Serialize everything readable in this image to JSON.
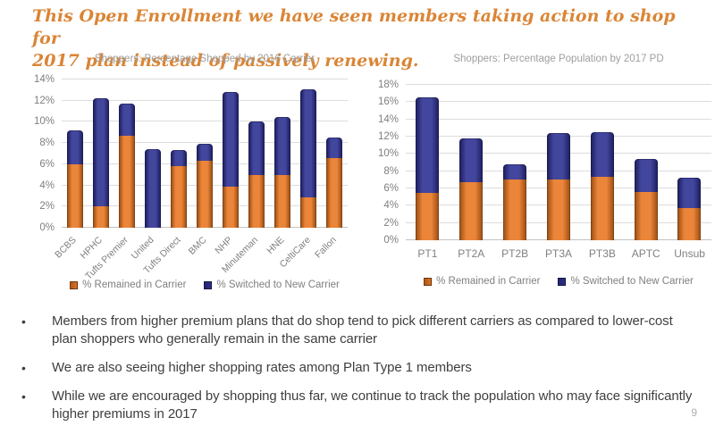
{
  "slide": {
    "title_line1": "This Open Enrollment we have seen members taking action to shop for",
    "title_line2": "2017 plan instead of passively renewing.",
    "page_number": "9"
  },
  "colors": {
    "title_orange": "#DA8536",
    "remained_bar": "#E87722",
    "switched_bar": "#2E3192",
    "gridline": "#DCDCDC",
    "axis_text": "#7F7F7F",
    "chart_title_text": "#9E9E9E",
    "bullet_text": "#3F3F3F"
  },
  "bullets": [
    "Members from higher premium plans that do shop tend to pick different carriers as compared to lower-cost plan shoppers who generally remain in the same carrier",
    "We are also seeing higher shopping rates among Plan Type 1 members",
    "While we are encouraged by shopping thus far, we continue to track the population who may face significantly higher premiums in 2017"
  ],
  "chart_data": [
    {
      "type": "bar",
      "stacked": true,
      "title": "Shoppers: Percentage Shopped by 2016 Carrier",
      "categories": [
        "BCBS",
        "HPHC",
        "Tufts Premier",
        "United",
        "Tufts Direct",
        "BMC",
        "NHP",
        "Minuteman",
        "HNE",
        "CeltiCare",
        "Fallon"
      ],
      "series": [
        {
          "name": "% Remained in Carrier",
          "color": "#E87722",
          "values": [
            6.0,
            2.0,
            8.7,
            0,
            5.8,
            6.3,
            3.9,
            5.0,
            5.0,
            2.9,
            6.6
          ]
        },
        {
          "name": "% Switched to New Carrier",
          "color": "#2E3192",
          "values": [
            3.2,
            10.2,
            3.0,
            7.4,
            1.5,
            1.6,
            8.9,
            5.0,
            5.5,
            10.2,
            1.9
          ]
        }
      ],
      "totals": [
        9.2,
        12.2,
        11.7,
        7.4,
        7.3,
        7.9,
        12.8,
        10.0,
        10.5,
        13.1,
        8.5
      ],
      "ylim": [
        0,
        14
      ],
      "ytick_step": 2,
      "ytick_labels": [
        "0%",
        "2%",
        "4%",
        "6%",
        "8%",
        "10%",
        "12%",
        "14%"
      ],
      "grid": true,
      "legend_position": "bottom",
      "xlabel_rotation": -45
    },
    {
      "type": "bar",
      "stacked": true,
      "title": "Shoppers: Percentage Population by 2017 PD",
      "categories": [
        "PT1",
        "PT2A",
        "PT2B",
        "PT3A",
        "PT3B",
        "APTC",
        "Unsub"
      ],
      "series": [
        {
          "name": "% Remained in Carrier",
          "color": "#E87722",
          "values": [
            5.5,
            6.7,
            7.0,
            7.0,
            7.3,
            5.6,
            3.7
          ]
        },
        {
          "name": "% Switched to New Carrier",
          "color": "#2E3192",
          "values": [
            11.1,
            5.1,
            1.8,
            5.4,
            5.2,
            3.8,
            3.5
          ]
        }
      ],
      "totals": [
        16.6,
        11.8,
        8.8,
        12.4,
        12.5,
        9.4,
        7.2
      ],
      "ylim": [
        0,
        18
      ],
      "ytick_step": 2,
      "ytick_labels": [
        "0%",
        "2%",
        "4%",
        "6%",
        "8%",
        "10%",
        "12%",
        "14%",
        "16%",
        "18%"
      ],
      "grid": true,
      "legend_position": "bottom",
      "xlabel_rotation": 0
    }
  ]
}
